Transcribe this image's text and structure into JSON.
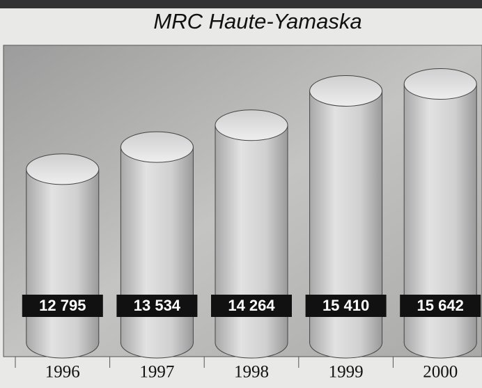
{
  "chart_data": {
    "type": "cylinder",
    "title": "MRC Haute-Yamaska",
    "categories": [
      "1996",
      "1997",
      "1998",
      "1999",
      "2000"
    ],
    "values": [
      12795,
      13534,
      14264,
      15410,
      15642
    ],
    "value_labels": [
      "12 795",
      "13 534",
      "14 264",
      "15 410",
      "15 642"
    ],
    "color": "#d6d6d6",
    "ylim": [
      7000,
      16700
    ]
  }
}
